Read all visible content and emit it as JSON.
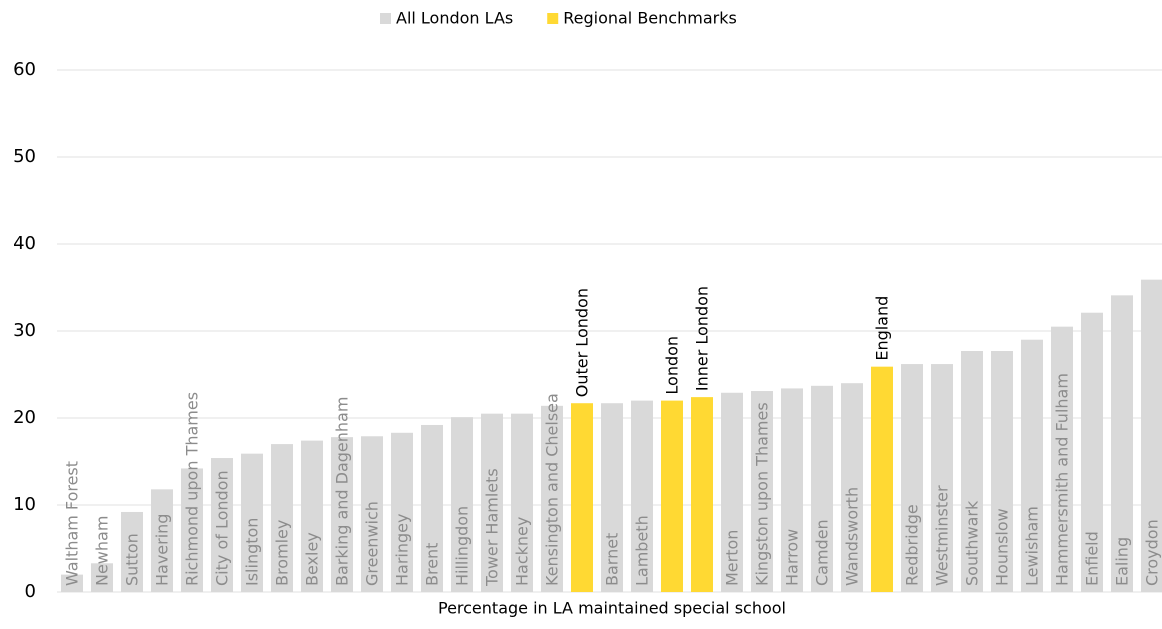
{
  "chart_data": {
    "type": "bar",
    "xlabel": "Percentage in LA maintained special school",
    "categories": [
      "Waltham Forest",
      "Newham",
      "Sutton",
      "Havering",
      "Richmond upon Thames",
      "City of London",
      "Islington",
      "Bromley",
      "Bexley",
      "Barking and Dagenham",
      "Greenwich",
      "Haringey",
      "Brent",
      "Hillingdon",
      "Tower Hamlets",
      "Hackney",
      "Kensington and Chelsea",
      "Outer London",
      "Barnet",
      "Lambeth",
      "London",
      "Inner London",
      "Merton",
      "Kingston upon Thames",
      "Harrow",
      "Camden",
      "Wandsworth",
      "England",
      "Redbridge",
      "Westminster",
      "Southwark",
      "Hounslow",
      "Lewisham",
      "Hammersmith and Fulham",
      "Enfield",
      "Ealing",
      "Croydon"
    ],
    "series": [
      {
        "name": "All London LAs",
        "color": "#d9d9d9",
        "label_color": "#8c8c8c",
        "values": [
          2.0,
          3.3,
          9.2,
          11.8,
          14.2,
          15.4,
          15.9,
          17.0,
          17.4,
          17.8,
          17.9,
          18.3,
          19.2,
          20.1,
          20.5,
          20.5,
          21.4,
          null,
          21.7,
          22.0,
          null,
          null,
          22.9,
          23.1,
          23.4,
          23.7,
          24.0,
          null,
          26.2,
          26.2,
          27.7,
          27.7,
          29.0,
          30.5,
          32.1,
          34.1,
          35.9
        ]
      },
      {
        "name": "Regional Benchmarks",
        "color": "#ffd933",
        "label_color": "#000000",
        "values": [
          null,
          null,
          null,
          null,
          null,
          null,
          null,
          null,
          null,
          null,
          null,
          null,
          null,
          null,
          null,
          null,
          null,
          21.7,
          null,
          null,
          22.0,
          22.4,
          null,
          null,
          null,
          null,
          null,
          25.9,
          null,
          null,
          null,
          null,
          null,
          null,
          null,
          null,
          null
        ]
      }
    ],
    "ylim": [
      0,
      60
    ],
    "yticks": [
      0,
      10,
      20,
      30,
      40,
      50,
      60
    ],
    "grid": true
  }
}
